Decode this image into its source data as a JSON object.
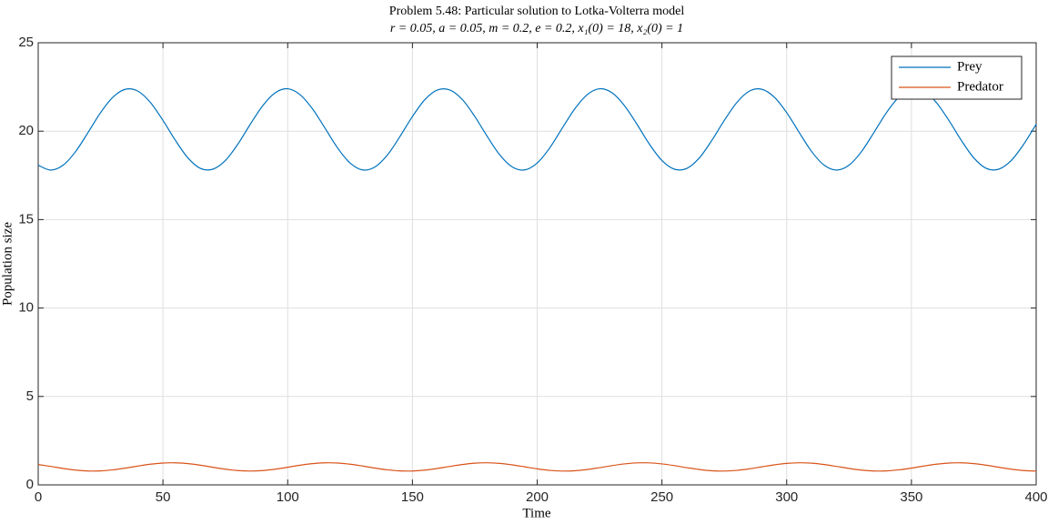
{
  "chart_data": {
    "type": "line",
    "title": "Problem 5.48: Particular solution to Lotka-Volterra model",
    "subtitle": "r = 0.05, a = 0.05, m = 0.2, e = 0.2, x₁(0) = 18, x₂(0) = 1",
    "x_label": "Time",
    "y_label": "Population size",
    "x": [
      0,
      5,
      10,
      15,
      20,
      25,
      30,
      35,
      40,
      45,
      50,
      55,
      60,
      65,
      70,
      75,
      80,
      85,
      90,
      95,
      100,
      105,
      110,
      115,
      120,
      125,
      130,
      135,
      140,
      145,
      150,
      155,
      160,
      165,
      170,
      175,
      180,
      185,
      190,
      195,
      200,
      205,
      210,
      215,
      220,
      225,
      230,
      235,
      240,
      245,
      250,
      255,
      260,
      265,
      270,
      275,
      280,
      285,
      290,
      295,
      300,
      305,
      310,
      315,
      320,
      325,
      330,
      335,
      340,
      345,
      350,
      355,
      360,
      365,
      370,
      375,
      380,
      385,
      390,
      395,
      400
    ],
    "series": [
      {
        "name": "Prey",
        "color": "#0072bd",
        "values": [
          18.08,
          17.8,
          18.08,
          18.85,
          19.93,
          21.05,
          21.93,
          22.37,
          22.26,
          21.62,
          20.61,
          19.48,
          18.49,
          17.9,
          17.85,
          18.34,
          19.26,
          20.39,
          21.44,
          22.17,
          22.4,
          22.06,
          21.25,
          20.16,
          19.05,
          18.2,
          17.81,
          17.98,
          18.66,
          19.7,
          20.83,
          21.79,
          22.33,
          22.33,
          21.79,
          20.83,
          19.7,
          18.66,
          17.98,
          17.81,
          18.2,
          19.05,
          20.16,
          21.25,
          22.06,
          22.4,
          22.17,
          21.44,
          20.39,
          19.26,
          18.34,
          17.85,
          17.9,
          18.49,
          19.48,
          20.61,
          21.62,
          22.26,
          22.37,
          21.93,
          21.05,
          19.93,
          18.85,
          18.08,
          17.8,
          18.08,
          18.85,
          19.93,
          21.05,
          21.93,
          22.37,
          22.26,
          21.62,
          20.61,
          19.48,
          18.49,
          17.9,
          17.85,
          18.34,
          19.26,
          20.39
        ]
      },
      {
        "name": "Predator",
        "color": "#d95319",
        "values": [
          1.152,
          1.044,
          0.929,
          0.835,
          0.785,
          0.79,
          0.851,
          0.951,
          1.067,
          1.17,
          1.236,
          1.247,
          1.202,
          1.112,
          0.997,
          0.887,
          0.809,
          0.78,
          0.809,
          0.887,
          0.997,
          1.112,
          1.202,
          1.247,
          1.236,
          1.17,
          1.067,
          0.951,
          0.851,
          0.79,
          0.785,
          0.835,
          0.929,
          1.044,
          1.152,
          1.227,
          1.25,
          1.215,
          1.133,
          1.021,
          0.908,
          0.821,
          0.781,
          0.799,
          0.868,
          0.974,
          1.09,
          1.187,
          1.243,
          1.243,
          1.187,
          1.09,
          0.974,
          0.868,
          0.799,
          0.781,
          0.821,
          0.908,
          1.021,
          1.133,
          1.215,
          1.25,
          1.227,
          1.152,
          1.044,
          0.929,
          0.835,
          0.785,
          0.79,
          0.851,
          0.951,
          1.067,
          1.17,
          1.236,
          1.247,
          1.202,
          1.112,
          0.997,
          0.887,
          0.809,
          0.78
        ]
      }
    ],
    "xlim": [
      0,
      400
    ],
    "xticks": [
      0,
      50,
      100,
      150,
      200,
      250,
      300,
      350,
      400
    ],
    "ylim": [
      0,
      25
    ],
    "yticks": [
      0,
      5,
      10,
      15,
      20,
      25
    ],
    "grid": true,
    "legend": "upper right"
  }
}
